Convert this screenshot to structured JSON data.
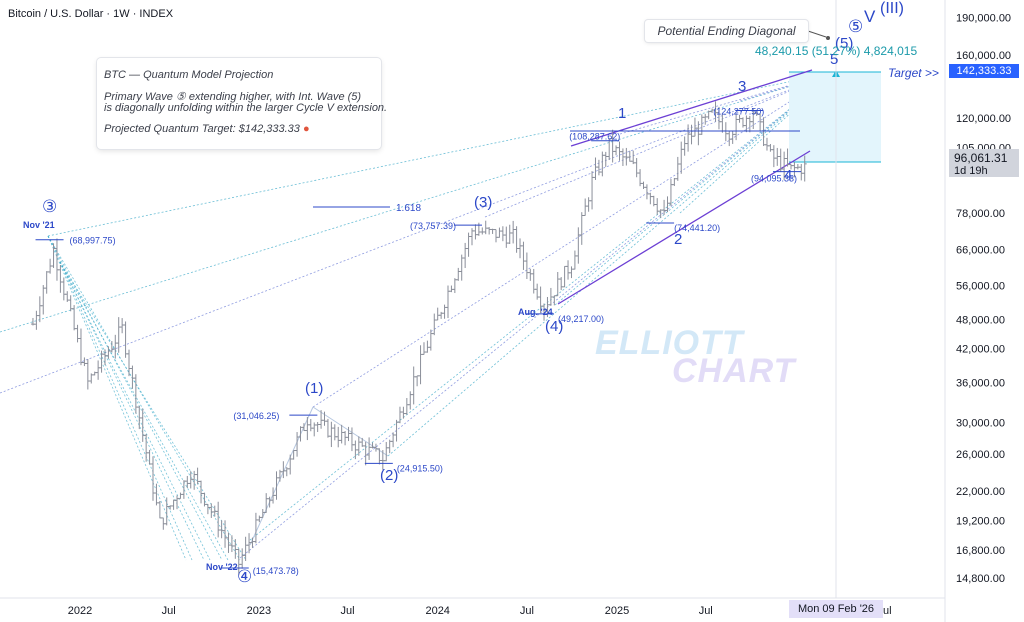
{
  "chart_title": "Bitcoin / U.S. Dollar · 1W · INDEX",
  "watermark": {
    "line1": "ELLIOTT",
    "line2": "CHART"
  },
  "annotation_box": {
    "title": "BTC — Quantum Model Projection",
    "line1": "Primary Wave ⑤ extending higher, with Int. Wave (5)",
    "line2": "is diagonally unfolding within the larger Cycle V extension.",
    "line3": "Projected Quantum Target: $142,333.33"
  },
  "pattern_label": "Potential Ending Diagonal",
  "measure_label": "48,240.15 (51.27%) 4,824,015",
  "target_label": "Target >>",
  "colors": {
    "wave": "#2c48c8",
    "fan": "#3aa9c8",
    "target_zone": "#e3f5fc",
    "target_line": "#19b5d6",
    "target_tag": "#2962ff",
    "current_tag": "#d1d4dc",
    "wedge": "#6c3fd4"
  },
  "current_price": {
    "value": "96,061.31",
    "countdown": "1d 19h"
  },
  "target_price": "142,333.33",
  "date_tag": "Mon 09 Feb '26",
  "fib_label": "1.618",
  "chart_data": {
    "type": "candlestick",
    "scale": "log",
    "ylim": [
      13500,
      200000
    ],
    "x_ticks": [
      "2022",
      "Jul",
      "2023",
      "Jul",
      "2024",
      "Jul",
      "2025",
      "Jul",
      "Jul"
    ],
    "y_ticks": [
      "190,000.00",
      "160,000.00",
      "142,333.33",
      "120,000.00",
      "105,000.00",
      "96,061.31",
      "78,000.00",
      "66,000.00",
      "56,000.00",
      "48,000.00",
      "42,000.00",
      "36,000.00",
      "30,000.00",
      "26,000.00",
      "22,000.00",
      "19,200.00",
      "16,800.00",
      "14,800.00"
    ],
    "y_tick_values": [
      190000,
      160000,
      142333.33,
      120000,
      105000,
      96061.31,
      78000,
      66000,
      56000,
      48000,
      42000,
      36000,
      30000,
      26000,
      22000,
      19200,
      16800,
      14800
    ],
    "price_path": [
      [
        "2021-09-27",
        47000
      ],
      [
        "2021-11-08",
        66000
      ],
      [
        "2022-01-17",
        36000
      ],
      [
        "2022-03-28",
        46000
      ],
      [
        "2022-06-13",
        19000
      ],
      [
        "2022-08-15",
        24000
      ],
      [
        "2022-11-21",
        15800
      ],
      [
        "2023-04-10",
        30500
      ],
      [
        "2023-09-11",
        25500
      ],
      [
        "2024-03-11",
        72000
      ],
      [
        "2024-06-03",
        70000
      ],
      [
        "2024-08-05",
        51000
      ],
      [
        "2024-09-30",
        62000
      ],
      [
        "2024-11-11",
        90000
      ],
      [
        "2024-12-16",
        106000
      ],
      [
        "2025-02-03",
        96000
      ],
      [
        "2025-04-07",
        77000
      ],
      [
        "2025-05-19",
        108000
      ],
      [
        "2025-07-14",
        122000
      ],
      [
        "2025-08-18",
        113000
      ],
      [
        "2025-10-06",
        124000
      ],
      [
        "2025-11-10",
        101000
      ],
      [
        "2025-12-22",
        95000
      ],
      [
        "2026-01-19",
        96061.31
      ]
    ],
    "waves": [
      {
        "label": "③",
        "date": "2021-11-08"
      },
      {
        "label": "Nov '21",
        "date": "2021-11-08"
      },
      {
        "label": "④",
        "date": "2022-11-21"
      },
      {
        "label": "Nov '22",
        "date": "2022-11-21"
      },
      {
        "label": "(1)",
        "date": "2023-04-10"
      },
      {
        "label": "(2)",
        "date": "2023-09-11"
      },
      {
        "label": "(3)",
        "date": "2024-03-11"
      },
      {
        "label": "(4)",
        "date": "2024-08-05"
      },
      {
        "label": "Aug. '24",
        "date": "2024-08-05"
      },
      {
        "label": "1",
        "date": "2024-12-16"
      },
      {
        "label": "2",
        "date": "2025-04-07"
      },
      {
        "label": "3",
        "date": "2025-10-06"
      },
      {
        "label": "4",
        "date": "2025-12-22"
      },
      {
        "label": "5",
        "date": "2026-02-09"
      },
      {
        "label": "(5)",
        "date": "2026-02-09"
      },
      {
        "label": "⑤",
        "date": "2026-02-09"
      },
      {
        "label": "V",
        "date": "2026-02-09"
      },
      {
        "label": "(III)",
        "date": "2026-02-09"
      }
    ],
    "price_labels": [
      {
        "text": "(68,997.75)",
        "date": "2021-11-08",
        "value": 68997.75
      },
      {
        "text": "(15,473.78)",
        "date": "2022-11-21",
        "value": 15473.78
      },
      {
        "text": "(31,046.25)",
        "date": "2023-04-10",
        "value": 31046.25
      },
      {
        "text": "(24,915.50)",
        "date": "2023-09-11",
        "value": 24915.5
      },
      {
        "text": "(73,757.39)",
        "date": "2024-03-11",
        "value": 73757.39
      },
      {
        "text": "(49,217.00)",
        "date": "2024-08-05",
        "value": 49217.0
      },
      {
        "text": "(108,287.62)",
        "date": "2024-12-16",
        "value": 108287.62
      },
      {
        "text": "(74,441.20)",
        "date": "2025-04-07",
        "value": 74441.2
      },
      {
        "text": "(124,277.50)",
        "date": "2025-10-06",
        "value": 124277.5
      },
      {
        "text": "(94,095.33)",
        "date": "2025-12-22",
        "value": 94095.33
      }
    ]
  }
}
